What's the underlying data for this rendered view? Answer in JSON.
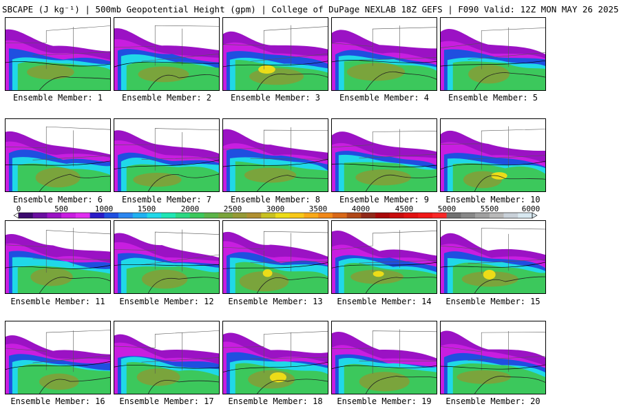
{
  "header": {
    "title": "SBCAPE (J kg⁻¹) | 500mb Geopotential Height (gpm) | College of DuPage NEXLAB 18Z GEFS | F090 Valid: 12Z MON MAY 26 2025"
  },
  "colorbar": {
    "ticks": [
      "0",
      "500",
      "1000",
      "1500",
      "2000",
      "2500",
      "3000",
      "3500",
      "4000",
      "4500",
      "5000",
      "5500",
      "6000"
    ],
    "colors": [
      "#3c0a6e",
      "#6a0fa0",
      "#9b12c4",
      "#c81ee0",
      "#e02ef0",
      "#2a1cc8",
      "#1f4fe0",
      "#2a86f0",
      "#1fb0f0",
      "#20d8e8",
      "#1ee6b4",
      "#2cd882",
      "#3cc85c",
      "#5cb448",
      "#7aa43c",
      "#969a36",
      "#b09030",
      "#c8c020",
      "#ecdc18",
      "#f8c818",
      "#f8a818",
      "#f08818",
      "#d86818",
      "#b04818",
      "#902818",
      "#a80808",
      "#c80c0c",
      "#e01010",
      "#f01818",
      "#f82828",
      "#707070",
      "#888888",
      "#a0a0a0",
      "#b8b8b8",
      "#c8d0d8",
      "#d8e8f0"
    ]
  },
  "panels": [
    {
      "label": "Ensemble Member: 1",
      "variant": 0
    },
    {
      "label": "Ensemble Member: 2",
      "variant": 1
    },
    {
      "label": "Ensemble Member: 3",
      "variant": 2
    },
    {
      "label": "Ensemble Member: 4",
      "variant": 3
    },
    {
      "label": "Ensemble Member: 5",
      "variant": 4
    },
    {
      "label": "Ensemble Member: 6",
      "variant": 5
    },
    {
      "label": "Ensemble Member: 7",
      "variant": 6
    },
    {
      "label": "Ensemble Member: 8",
      "variant": 7
    },
    {
      "label": "Ensemble Member: 9",
      "variant": 8
    },
    {
      "label": "Ensemble Member: 10",
      "variant": 9
    },
    {
      "label": "Ensemble Member: 11",
      "variant": 10
    },
    {
      "label": "Ensemble Member: 12",
      "variant": 11
    },
    {
      "label": "Ensemble Member: 13",
      "variant": 12
    },
    {
      "label": "Ensemble Member: 14",
      "variant": 13
    },
    {
      "label": "Ensemble Member: 15",
      "variant": 14
    },
    {
      "label": "Ensemble Member: 16",
      "variant": 15
    },
    {
      "label": "Ensemble Member: 17",
      "variant": 16
    },
    {
      "label": "Ensemble Member: 18",
      "variant": 17
    },
    {
      "label": "Ensemble Member: 19",
      "variant": 18
    },
    {
      "label": "Ensemble Member: 20",
      "variant": 19
    }
  ]
}
